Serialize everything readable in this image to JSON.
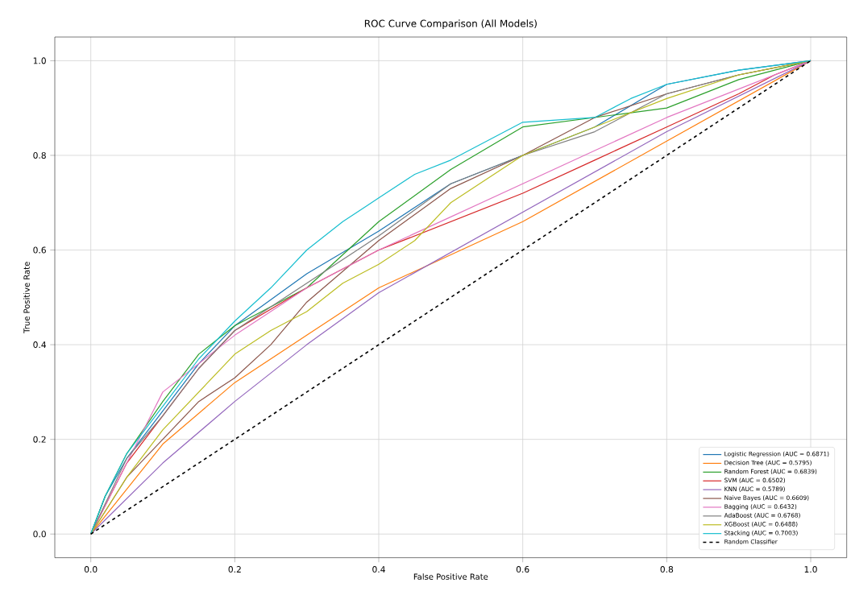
{
  "chart_data": {
    "type": "line",
    "title": "ROC Curve Comparison (All Models)",
    "xlabel": "False Positive Rate",
    "ylabel": "True Positive Rate",
    "xlim": [
      -0.05,
      1.05
    ],
    "ylim": [
      -0.05,
      1.05
    ],
    "xticks": [
      {
        "value": 0,
        "label": "0.0"
      },
      {
        "value": 0.2,
        "label": "0.2"
      },
      {
        "value": 0.4,
        "label": "0.4"
      },
      {
        "value": 0.6,
        "label": "0.6"
      },
      {
        "value": 0.8,
        "label": "0.8"
      },
      {
        "value": 1,
        "label": "1.0"
      }
    ],
    "yticks": [
      {
        "value": 0,
        "label": "0.0"
      },
      {
        "value": 0.2,
        "label": "0.2"
      },
      {
        "value": 0.4,
        "label": "0.4"
      },
      {
        "value": 0.6,
        "label": "0.6"
      },
      {
        "value": 0.8,
        "label": "0.8"
      },
      {
        "value": 1,
        "label": "1.0"
      }
    ],
    "grid": true,
    "legend": "bottom right",
    "series": [
      {
        "name": "Logistic Regression (AUC = 0.6871)",
        "color": "#1f77b4",
        "x": [
          0,
          0.02,
          0.05,
          0.1,
          0.15,
          0.2,
          0.3,
          0.4,
          0.5,
          0.6,
          0.7,
          0.8,
          0.9,
          1
        ],
        "values": [
          0,
          0.08,
          0.16,
          0.26,
          0.36,
          0.44,
          0.55,
          0.64,
          0.74,
          0.8,
          0.86,
          0.95,
          0.98,
          1
        ]
      },
      {
        "name": "Decision Tree (AUC = 0.5795)",
        "color": "#ff7f0e",
        "x": [
          0,
          0.1,
          0.2,
          0.3,
          0.4,
          0.6,
          0.8,
          1
        ],
        "values": [
          0,
          0.19,
          0.32,
          0.42,
          0.52,
          0.66,
          0.83,
          1
        ]
      },
      {
        "name": "Random Forest (AUC = 0.6839)",
        "color": "#2ca02c",
        "x": [
          0,
          0.02,
          0.05,
          0.1,
          0.15,
          0.2,
          0.3,
          0.4,
          0.5,
          0.6,
          0.7,
          0.8,
          0.9,
          1
        ],
        "values": [
          0,
          0.08,
          0.17,
          0.28,
          0.38,
          0.44,
          0.52,
          0.66,
          0.77,
          0.86,
          0.88,
          0.9,
          0.96,
          1
        ]
      },
      {
        "name": "SVM (AUC = 0.6502)",
        "color": "#d62728",
        "x": [
          0,
          0.05,
          0.1,
          0.15,
          0.2,
          0.3,
          0.4,
          0.5,
          0.6,
          0.7,
          0.8,
          0.9,
          0.95,
          1
        ],
        "values": [
          0,
          0.15,
          0.25,
          0.35,
          0.43,
          0.52,
          0.6,
          0.66,
          0.72,
          0.79,
          0.86,
          0.93,
          0.97,
          1
        ]
      },
      {
        "name": "KNN (AUC = 0.5789)",
        "color": "#9467bd",
        "x": [
          0,
          0.1,
          0.2,
          0.3,
          0.4,
          0.6,
          0.8,
          1
        ],
        "values": [
          0,
          0.15,
          0.28,
          0.4,
          0.51,
          0.68,
          0.85,
          1
        ]
      },
      {
        "name": "Naive Bayes (AUC = 0.6609)",
        "color": "#8c564b",
        "x": [
          0,
          0.05,
          0.1,
          0.15,
          0.2,
          0.25,
          0.3,
          0.4,
          0.5,
          0.6,
          0.7,
          0.8,
          0.9,
          1
        ],
        "values": [
          0,
          0.12,
          0.2,
          0.28,
          0.33,
          0.4,
          0.49,
          0.62,
          0.73,
          0.8,
          0.88,
          0.93,
          0.97,
          1
        ]
      },
      {
        "name": "Bagging (AUC = 0.6432)",
        "color": "#e377c2",
        "x": [
          0,
          0.05,
          0.1,
          0.2,
          0.3,
          0.4,
          0.5,
          0.6,
          0.7,
          0.8,
          0.9,
          1
        ],
        "values": [
          0,
          0.15,
          0.3,
          0.42,
          0.52,
          0.6,
          0.67,
          0.74,
          0.81,
          0.88,
          0.94,
          1
        ]
      },
      {
        "name": "AdaBoost (AUC = 0.6768)",
        "color": "#7f7f7f",
        "x": [
          0,
          0.05,
          0.1,
          0.15,
          0.2,
          0.3,
          0.4,
          0.5,
          0.6,
          0.7,
          0.8,
          0.9,
          1
        ],
        "values": [
          0,
          0.16,
          0.25,
          0.35,
          0.43,
          0.53,
          0.63,
          0.74,
          0.8,
          0.85,
          0.93,
          0.97,
          1
        ]
      },
      {
        "name": "XGBoost (AUC = 0.6488)",
        "color": "#bcbd22",
        "x": [
          0,
          0.05,
          0.1,
          0.15,
          0.2,
          0.25,
          0.3,
          0.35,
          0.4,
          0.45,
          0.5,
          0.6,
          0.7,
          0.8,
          0.9,
          1
        ],
        "values": [
          0,
          0.12,
          0.22,
          0.3,
          0.38,
          0.43,
          0.47,
          0.53,
          0.57,
          0.62,
          0.7,
          0.8,
          0.86,
          0.92,
          0.97,
          1
        ]
      },
      {
        "name": "Stacking (AUC = 0.7003)",
        "color": "#17becf",
        "x": [
          0,
          0.02,
          0.05,
          0.1,
          0.15,
          0.2,
          0.25,
          0.3,
          0.35,
          0.4,
          0.45,
          0.5,
          0.55,
          0.6,
          0.7,
          0.75,
          0.8,
          0.9,
          1
        ],
        "values": [
          0,
          0.08,
          0.17,
          0.27,
          0.37,
          0.45,
          0.52,
          0.6,
          0.66,
          0.71,
          0.76,
          0.79,
          0.83,
          0.87,
          0.88,
          0.92,
          0.95,
          0.98,
          1
        ]
      },
      {
        "name": "Random Classifier",
        "color": "#000000",
        "line_style": "dashed",
        "x": [
          0,
          1
        ],
        "values": [
          0,
          1
        ]
      }
    ]
  }
}
